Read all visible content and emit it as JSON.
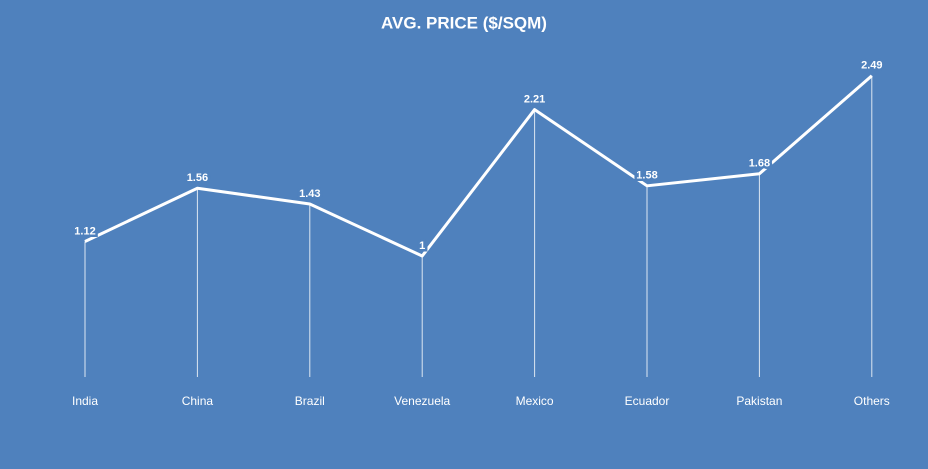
{
  "chart_data": {
    "type": "line",
    "title": "AVG. PRICE ($/SQM)",
    "categories": [
      "India",
      "China",
      "Brazil",
      "Venezuela",
      "Mexico",
      "Ecuador",
      "Pakistan",
      "Others"
    ],
    "values": [
      1.12,
      1.56,
      1.43,
      1,
      2.21,
      1.58,
      1.68,
      2.49
    ],
    "color": "#ffffff",
    "drop_lines": true
  }
}
